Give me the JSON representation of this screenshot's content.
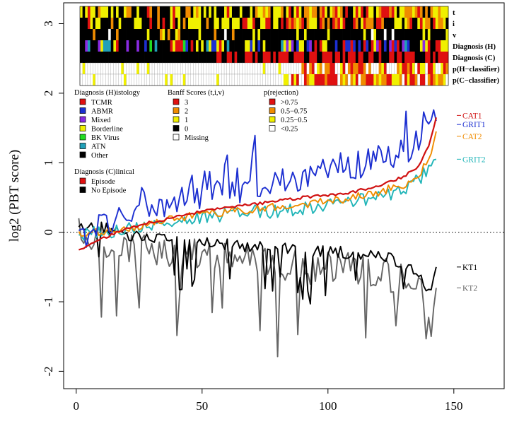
{
  "chart_data": {
    "type": "line",
    "ylabel": "log2 (PBT score)",
    "xlabel": "",
    "xlim": [
      -5,
      170
    ],
    "ylim": [
      -2.25,
      3.3
    ],
    "x_ticks": [
      "0",
      "50",
      "100",
      "150"
    ],
    "x_tick_values": [
      0,
      50,
      100,
      150
    ],
    "y_ticks": [
      "-2",
      "-1",
      "0",
      "1",
      "2",
      "3"
    ],
    "y_tick_values": [
      -2,
      -1,
      0,
      1,
      2,
      3
    ],
    "reference_line": {
      "y": 0,
      "style": "dotted"
    },
    "n_samples": 143,
    "series": [
      {
        "name": "GRIT1",
        "color": "#1c2fd1",
        "knots": [
          [
            1,
            -0.12
          ],
          [
            10,
            0.12
          ],
          [
            20,
            0.22
          ],
          [
            30,
            0.33
          ],
          [
            40,
            0.45
          ],
          [
            50,
            0.52
          ],
          [
            60,
            0.6
          ],
          [
            70,
            0.65
          ],
          [
            80,
            0.72
          ],
          [
            90,
            0.8
          ],
          [
            100,
            0.87
          ],
          [
            110,
            0.95
          ],
          [
            120,
            1.05
          ],
          [
            130,
            1.15
          ],
          [
            136,
            1.3
          ],
          [
            139,
            1.8
          ],
          [
            143,
            1.6
          ]
        ],
        "noise": 0.2
      },
      {
        "name": "CAT1",
        "color": "#d01010",
        "knots": [
          [
            1,
            -0.25
          ],
          [
            10,
            -0.1
          ],
          [
            20,
            0.05
          ],
          [
            30,
            0.15
          ],
          [
            40,
            0.22
          ],
          [
            50,
            0.3
          ],
          [
            60,
            0.35
          ],
          [
            70,
            0.4
          ],
          [
            80,
            0.45
          ],
          [
            90,
            0.5
          ],
          [
            100,
            0.53
          ],
          [
            110,
            0.58
          ],
          [
            120,
            0.67
          ],
          [
            130,
            0.8
          ],
          [
            136,
            0.95
          ],
          [
            140,
            1.25
          ],
          [
            143,
            1.65
          ]
        ],
        "noise": 0.02
      },
      {
        "name": "CAT2",
        "color": "#f08c00",
        "knots": [
          [
            1,
            -0.05
          ],
          [
            10,
            0.0
          ],
          [
            20,
            0.05
          ],
          [
            30,
            0.12
          ],
          [
            40,
            0.2
          ],
          [
            50,
            0.25
          ],
          [
            60,
            0.3
          ],
          [
            70,
            0.33
          ],
          [
            80,
            0.37
          ],
          [
            90,
            0.4
          ],
          [
            100,
            0.45
          ],
          [
            110,
            0.5
          ],
          [
            120,
            0.58
          ],
          [
            130,
            0.68
          ],
          [
            136,
            0.8
          ],
          [
            140,
            1.05
          ],
          [
            143,
            1.45
          ]
        ],
        "noise": 0.06
      },
      {
        "name": "GRIT2",
        "color": "#21b5b8",
        "knots": [
          [
            1,
            -0.05
          ],
          [
            10,
            0.0
          ],
          [
            20,
            0.05
          ],
          [
            30,
            0.1
          ],
          [
            40,
            0.15
          ],
          [
            50,
            0.2
          ],
          [
            60,
            0.25
          ],
          [
            70,
            0.3
          ],
          [
            80,
            0.3
          ],
          [
            90,
            0.35
          ],
          [
            100,
            0.4
          ],
          [
            110,
            0.45
          ],
          [
            120,
            0.5
          ],
          [
            130,
            0.6
          ],
          [
            136,
            0.75
          ],
          [
            140,
            0.95
          ],
          [
            143,
            1.05
          ]
        ],
        "noise": 0.1
      },
      {
        "name": "KT1",
        "color": "#000000",
        "knots": [
          [
            1,
            0.15
          ],
          [
            10,
            0.05
          ],
          [
            20,
            -0.05
          ],
          [
            30,
            -0.1
          ],
          [
            40,
            -0.12
          ],
          [
            50,
            -0.15
          ],
          [
            60,
            -0.18
          ],
          [
            70,
            -0.2
          ],
          [
            80,
            -0.22
          ],
          [
            90,
            -0.25
          ],
          [
            100,
            -0.28
          ],
          [
            110,
            -0.3
          ],
          [
            120,
            -0.35
          ],
          [
            130,
            -0.45
          ],
          [
            136,
            -0.6
          ],
          [
            140,
            -0.85
          ],
          [
            143,
            -0.5
          ]
        ],
        "noise": 0.1
      },
      {
        "name": "KT2",
        "color": "#666666",
        "knots": [
          [
            1,
            0.1
          ],
          [
            10,
            -0.1
          ],
          [
            20,
            -0.2
          ],
          [
            30,
            -0.25
          ],
          [
            40,
            -0.3
          ],
          [
            50,
            -0.35
          ],
          [
            60,
            -0.4
          ],
          [
            70,
            -0.42
          ],
          [
            80,
            -0.45
          ],
          [
            90,
            -0.5
          ],
          [
            100,
            -0.52
          ],
          [
            110,
            -0.55
          ],
          [
            120,
            -0.6
          ],
          [
            130,
            -0.7
          ],
          [
            136,
            -0.8
          ],
          [
            140,
            -1.0
          ],
          [
            143,
            -0.8
          ]
        ],
        "noise": 0.25
      }
    ],
    "heatmap": {
      "rows": [
        "t",
        "i",
        "v",
        "Diagnosis (H)",
        "Diagnosis (C)",
        "p(H−classifier)",
        "p(C−classifier)"
      ],
      "columns": 143
    },
    "legends": [
      {
        "title": "Diagnosis (H)istology",
        "items": [
          {
            "label": "TCMR",
            "color": "#e01010"
          },
          {
            "label": "ABMR",
            "color": "#1c2fd1"
          },
          {
            "label": "Mixed",
            "color": "#8a2be2"
          },
          {
            "label": "Borderline",
            "color": "#f0f000"
          },
          {
            "label": "BK Virus",
            "color": "#22dd22"
          },
          {
            "label": "ATN",
            "color": "#20a0b8"
          },
          {
            "label": "Other",
            "color": "#000000"
          }
        ]
      },
      {
        "title": "Banff Scores (t,i,v)",
        "items": [
          {
            "label": "3",
            "color": "#e01010"
          },
          {
            "label": "2",
            "color": "#f08c00"
          },
          {
            "label": "1",
            "color": "#f0f000"
          },
          {
            "label": "0",
            "color": "#000000"
          },
          {
            "label": "Missing",
            "color": "#ffffff"
          }
        ]
      },
      {
        "title": "p(rejection)",
        "items": [
          {
            "label": ">0.75",
            "color": "#e01010"
          },
          {
            "label": "0.5−0.75",
            "color": "#f08c00"
          },
          {
            "label": "0.25−0.5",
            "color": "#f0f000"
          },
          {
            "label": "<0.25",
            "color": "#ffffff"
          }
        ]
      },
      {
        "title": "Diagnosis (C)linical",
        "items": [
          {
            "label": "Episode",
            "color": "#e01010"
          },
          {
            "label": "No Episode",
            "color": "#000000"
          }
        ]
      }
    ]
  }
}
